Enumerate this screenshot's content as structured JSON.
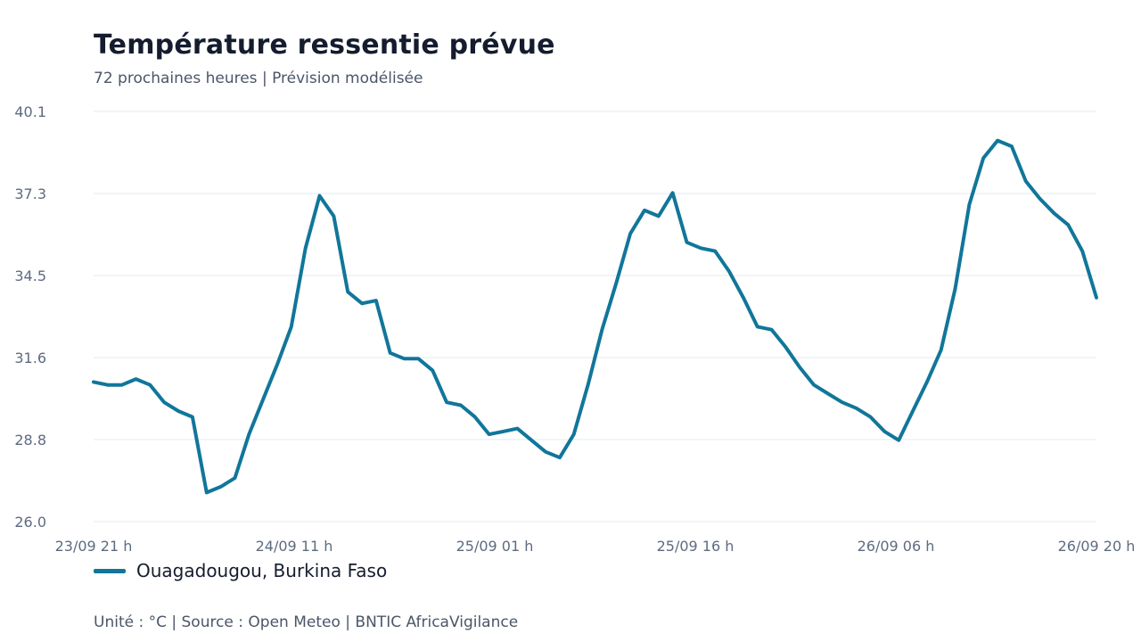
{
  "header": {
    "title": "Température ressentie prévue",
    "subtitle": "72 prochaines heures | Prévision modélisée"
  },
  "footer": {
    "text": "Unité : °C | Source : Open Meteo | BNTIC AfricaVigilance"
  },
  "chart_data": {
    "type": "line",
    "title": "Température ressentie prévue",
    "subtitle": "72 prochaines heures | Prévision modélisée",
    "xlabel": "",
    "ylabel": "",
    "ylim": [
      26.0,
      40.1
    ],
    "yticks": [
      "40.1",
      "37.3",
      "34.5",
      "31.6",
      "28.8",
      "26.0"
    ],
    "xticks": [
      "23/09 21 h",
      "24/09 11 h",
      "25/09 01 h",
      "25/09 16 h",
      "26/09 06 h",
      "26/09 20 h"
    ],
    "grid": true,
    "legend_position": "bottom-left",
    "colors": {
      "line": "#11769a",
      "grid": "#e6e8ec",
      "axis_text": "#5d6b80"
    },
    "series": [
      {
        "name": "Ouagadougou, Burkina Faso",
        "values": [
          30.8,
          30.7,
          30.7,
          30.9,
          30.7,
          30.1,
          29.8,
          29.6,
          27.0,
          27.2,
          27.5,
          29.0,
          30.2,
          31.4,
          32.7,
          35.4,
          37.2,
          36.5,
          33.9,
          33.5,
          33.6,
          31.8,
          31.6,
          31.6,
          31.2,
          30.1,
          30.0,
          29.6,
          29.0,
          29.1,
          29.2,
          28.8,
          28.4,
          28.2,
          29.0,
          30.7,
          32.6,
          34.2,
          35.9,
          36.7,
          36.5,
          37.3,
          35.6,
          35.4,
          35.3,
          34.6,
          33.7,
          32.7,
          32.6,
          32.0,
          31.3,
          30.7,
          30.4,
          30.1,
          29.9,
          29.6,
          29.1,
          28.8,
          29.8,
          30.8,
          31.9,
          34.0,
          36.9,
          38.5,
          39.1,
          38.9,
          37.7,
          37.1,
          36.6,
          36.2,
          35.3,
          33.7
        ]
      }
    ]
  }
}
